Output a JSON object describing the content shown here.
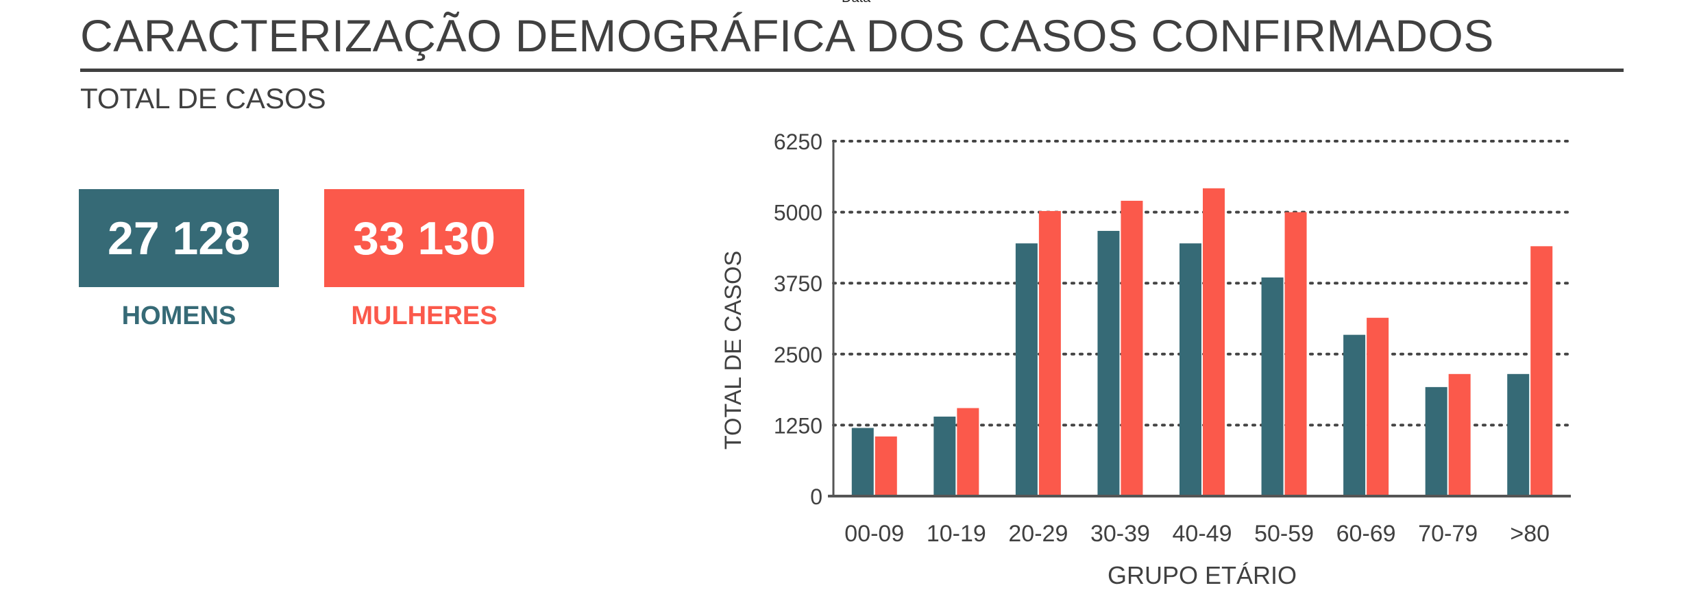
{
  "header": {
    "cut_text": "Data",
    "title": "CARACTERIZAÇÃO DEMOGRÁFICA DOS CASOS CONFIRMADOS",
    "section_title": "TOTAL DE CASOS"
  },
  "kpis": {
    "men": {
      "value": "27 128",
      "label": "HOMENS",
      "color": "#366a76"
    },
    "women": {
      "value": "33 130",
      "label": "MULHERES",
      "color": "#fb594b"
    }
  },
  "chart_data": {
    "type": "bar",
    "categories": [
      "00-09",
      "10-19",
      "20-29",
      "30-39",
      "40-49",
      "50-59",
      "60-69",
      "70-79",
      ">80"
    ],
    "series": [
      {
        "values": [
          1200,
          1400,
          4450,
          4670,
          4450,
          3850,
          2840,
          1920,
          2150
        ],
        "color": "#366a76"
      },
      {
        "values": [
          1050,
          1550,
          5020,
          5200,
          5420,
          5000,
          3140,
          2150,
          4400
        ],
        "color": "#fb594b"
      }
    ],
    "xlabel": "GRUPO ETÁRIO",
    "ylabel": "TOTAL DE CASOS",
    "ylim": [
      0,
      6250
    ],
    "yticks": [
      0,
      1250,
      2500,
      3750,
      5000,
      6250
    ],
    "grid": true,
    "grid_style": "dotted",
    "legend": "none"
  }
}
